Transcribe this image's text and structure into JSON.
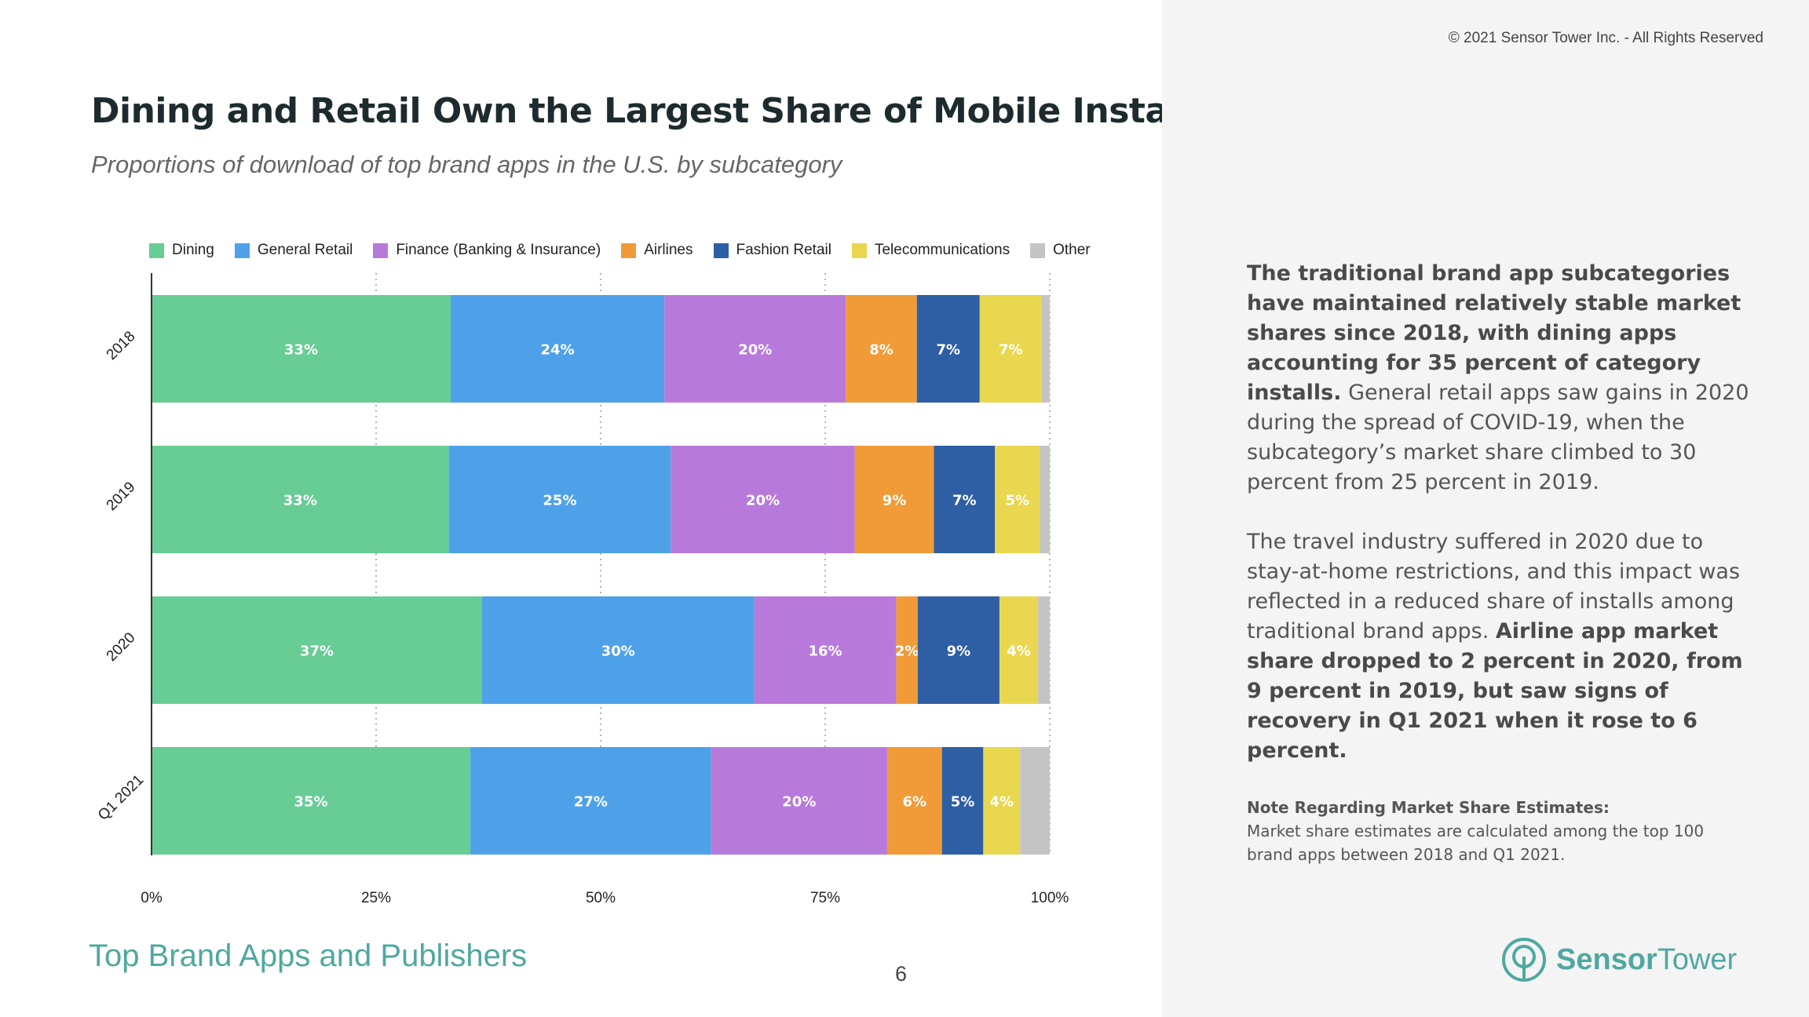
{
  "header": {
    "title": "Dining and Retail Own the Largest Share of Mobile Installs",
    "subtitle": "Proportions of download of top brand apps in the U.S. by subcategory",
    "copyright": "© 2021 Sensor Tower Inc. - All Rights Reserved"
  },
  "chart_data": {
    "type": "bar",
    "orientation": "horizontal",
    "stacked": true,
    "categories": [
      "2018",
      "2019",
      "2020",
      "Q1 2021"
    ],
    "series": [
      {
        "name": "Dining",
        "color": "#68cc95",
        "values": [
          33.3,
          33.1,
          36.8,
          35.5
        ],
        "labels": [
          "33%",
          "33%",
          "37%",
          "35%"
        ]
      },
      {
        "name": "General Retail",
        "color": "#4ea1e9",
        "values": [
          23.8,
          24.7,
          30.3,
          26.8
        ],
        "labels": [
          "24%",
          "25%",
          "30%",
          "27%"
        ]
      },
      {
        "name": "Finance (Banking & Insurance)",
        "color": "#b87ada",
        "values": [
          20.2,
          20.5,
          15.8,
          19.6
        ],
        "labels": [
          "20%",
          "20%",
          "16%",
          "20%"
        ]
      },
      {
        "name": "Airlines",
        "color": "#f09b38",
        "values": [
          7.9,
          8.8,
          2.4,
          6.1
        ],
        "labels": [
          "8%",
          "9%",
          "2%",
          "6%"
        ]
      },
      {
        "name": "Fashion Retail",
        "color": "#2e5ea4",
        "values": [
          7.0,
          6.8,
          9.1,
          4.6
        ],
        "labels": [
          "7%",
          "7%",
          "9%",
          "5%"
        ]
      },
      {
        "name": "Telecommunications",
        "color": "#e8d74f",
        "values": [
          6.9,
          5.0,
          4.3,
          4.1
        ],
        "labels": [
          "7%",
          "5%",
          "4%",
          "4%"
        ]
      },
      {
        "name": "Other",
        "color": "#c4c4c4",
        "values": [
          0.9,
          1.1,
          1.3,
          3.3
        ],
        "labels": [
          "",
          "",
          "",
          ""
        ]
      }
    ],
    "xticks": [
      "0%",
      "25%",
      "50%",
      "75%",
      "100%"
    ],
    "xlim": [
      0,
      100
    ],
    "grid": "vertical dotted",
    "legend": "top"
  },
  "side": {
    "p1_bold": "The traditional brand app subcategories have maintained relatively stable market shares since 2018, with dining apps accounting for 35 percent of category installs.",
    "p1_rest": " General retail apps saw gains in 2020 during the spread of COVID-19, when the subcategory’s market share climbed to 30 percent from 25 percent in 2019.",
    "p2_rest": "The travel industry suffered in 2020 due to stay-at-home restrictions, and this impact was reflected in a reduced share of installs among traditional brand apps. ",
    "p2_bold": "Airline app market share dropped to 2 percent in 2020, from 9 percent in 2019, but saw signs of recovery in Q1 2021 when it rose to 6 percent.",
    "note_title": "Note Regarding Market Share Estimates:",
    "note_text": "Market share estimates are calculated among the top 100 brand apps between 2018 and Q1 2021."
  },
  "footer": {
    "section": "Top Brand Apps and Publishers",
    "page": "6",
    "logo_bold": "Sensor",
    "logo_light": "Tower"
  }
}
